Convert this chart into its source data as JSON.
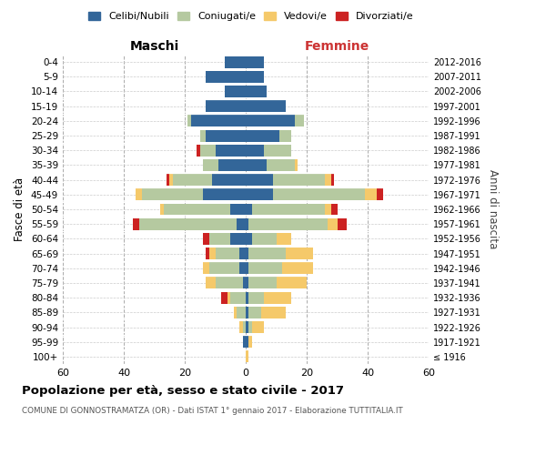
{
  "age_groups": [
    "100+",
    "95-99",
    "90-94",
    "85-89",
    "80-84",
    "75-79",
    "70-74",
    "65-69",
    "60-64",
    "55-59",
    "50-54",
    "45-49",
    "40-44",
    "35-39",
    "30-34",
    "25-29",
    "20-24",
    "15-19",
    "10-14",
    "5-9",
    "0-4"
  ],
  "birth_years": [
    "≤ 1916",
    "1917-1921",
    "1922-1926",
    "1927-1931",
    "1932-1936",
    "1937-1941",
    "1942-1946",
    "1947-1951",
    "1952-1956",
    "1957-1961",
    "1962-1966",
    "1967-1971",
    "1972-1976",
    "1977-1981",
    "1982-1986",
    "1987-1991",
    "1992-1996",
    "1997-2001",
    "2002-2006",
    "2007-2011",
    "2012-2016"
  ],
  "males": {
    "celibi": [
      0,
      1,
      0,
      0,
      0,
      1,
      2,
      2,
      5,
      3,
      5,
      14,
      11,
      9,
      10,
      13,
      18,
      13,
      7,
      13,
      7
    ],
    "coniugati": [
      0,
      0,
      1,
      3,
      5,
      9,
      10,
      8,
      7,
      32,
      22,
      20,
      13,
      5,
      5,
      2,
      1,
      0,
      0,
      0,
      0
    ],
    "vedovi": [
      0,
      0,
      1,
      1,
      1,
      3,
      2,
      2,
      0,
      0,
      1,
      2,
      1,
      0,
      0,
      0,
      0,
      0,
      0,
      0,
      0
    ],
    "divorziati": [
      0,
      0,
      0,
      0,
      2,
      0,
      0,
      1,
      2,
      2,
      0,
      0,
      1,
      0,
      1,
      0,
      0,
      0,
      0,
      0,
      0
    ]
  },
  "females": {
    "nubili": [
      0,
      1,
      1,
      1,
      1,
      1,
      1,
      1,
      2,
      1,
      2,
      9,
      9,
      7,
      6,
      11,
      16,
      13,
      7,
      6,
      6
    ],
    "coniugate": [
      0,
      0,
      1,
      4,
      5,
      9,
      11,
      12,
      8,
      26,
      24,
      30,
      17,
      9,
      9,
      4,
      3,
      0,
      0,
      0,
      0
    ],
    "vedove": [
      1,
      1,
      4,
      8,
      9,
      10,
      10,
      9,
      5,
      3,
      2,
      4,
      2,
      1,
      0,
      0,
      0,
      0,
      0,
      0,
      0
    ],
    "divorziate": [
      0,
      0,
      0,
      0,
      0,
      0,
      0,
      0,
      0,
      3,
      2,
      2,
      1,
      0,
      0,
      0,
      0,
      0,
      0,
      0,
      0
    ]
  },
  "colors": {
    "celibi": "#336699",
    "coniugati": "#b5c9a0",
    "vedovi": "#f5c96a",
    "divorziati": "#cc2222"
  },
  "xlim": 60,
  "title": "Popolazione per età, sesso e stato civile - 2017",
  "subtitle": "COMUNE DI GONNOSTRAMATZA (OR) - Dati ISTAT 1° gennaio 2017 - Elaborazione TUTTITALIA.IT",
  "ylabel": "Fasce di età",
  "ylabel_right": "Anni di nascita",
  "xlabel_left": "Maschi",
  "xlabel_right": "Femmine",
  "legend_labels": [
    "Celibi/Nubili",
    "Coniugati/e",
    "Vedovi/e",
    "Divorziati/e"
  ],
  "background_color": "#ffffff",
  "grid_color": "#cccccc"
}
